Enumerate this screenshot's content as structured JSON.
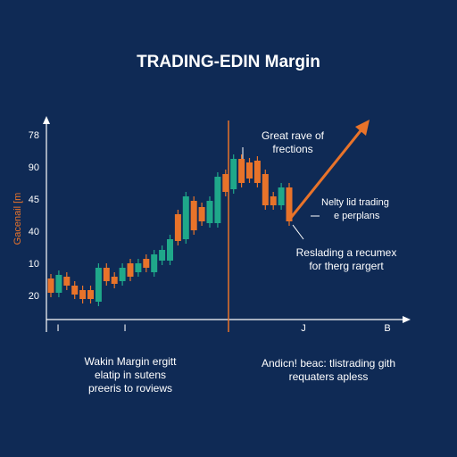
{
  "chart_data": {
    "type": "candlestick",
    "title": "TRADING-EDIN Margin",
    "y_label": "Gacenail [m",
    "y_labels": [
      "78",
      "90",
      "45",
      "40",
      "10",
      "20"
    ],
    "x_labels": [
      "I",
      "I",
      "J",
      "B"
    ],
    "ylim": [
      0,
      240
    ],
    "up_color": "#1fa88a",
    "down_color": "#e8732a",
    "open": [
      58,
      42,
      60,
      50,
      45,
      45,
      32,
      70,
      60,
      55,
      75,
      65,
      80,
      65,
      78,
      78,
      130,
      102,
      145,
      138,
      120,
      120,
      175,
      158,
      192,
      188,
      190,
      175,
      150,
      140,
      160
    ],
    "close": [
      42,
      62,
      50,
      40,
      35,
      35,
      70,
      55,
      52,
      70,
      60,
      75,
      70,
      85,
      90,
      102,
      100,
      150,
      112,
      122,
      145,
      172,
      155,
      192,
      165,
      170,
      165,
      140,
      140,
      160,
      122
    ],
    "high": [
      63,
      67,
      65,
      55,
      50,
      50,
      75,
      75,
      65,
      75,
      80,
      80,
      85,
      90,
      95,
      107,
      135,
      155,
      150,
      143,
      150,
      177,
      180,
      197,
      197,
      193,
      195,
      180,
      155,
      165,
      165
    ],
    "low": [
      37,
      37,
      45,
      35,
      30,
      30,
      27,
      50,
      47,
      50,
      55,
      60,
      65,
      60,
      73,
      73,
      95,
      97,
      107,
      117,
      115,
      115,
      150,
      153,
      160,
      165,
      160,
      135,
      135,
      135,
      117
    ],
    "annotations": [
      [
        "Great rave of",
        "frections"
      ],
      [
        "Nelty lid trading",
        "e perplans"
      ],
      [
        "Reslading a recumex",
        "for therg rargert"
      ],
      [
        "Wakin Margin ergitt",
        "elatip in sutens",
        "preeris to roviews"
      ],
      [
        "Andicn! beac: tlistrading gith",
        "requaters apless"
      ]
    ]
  }
}
